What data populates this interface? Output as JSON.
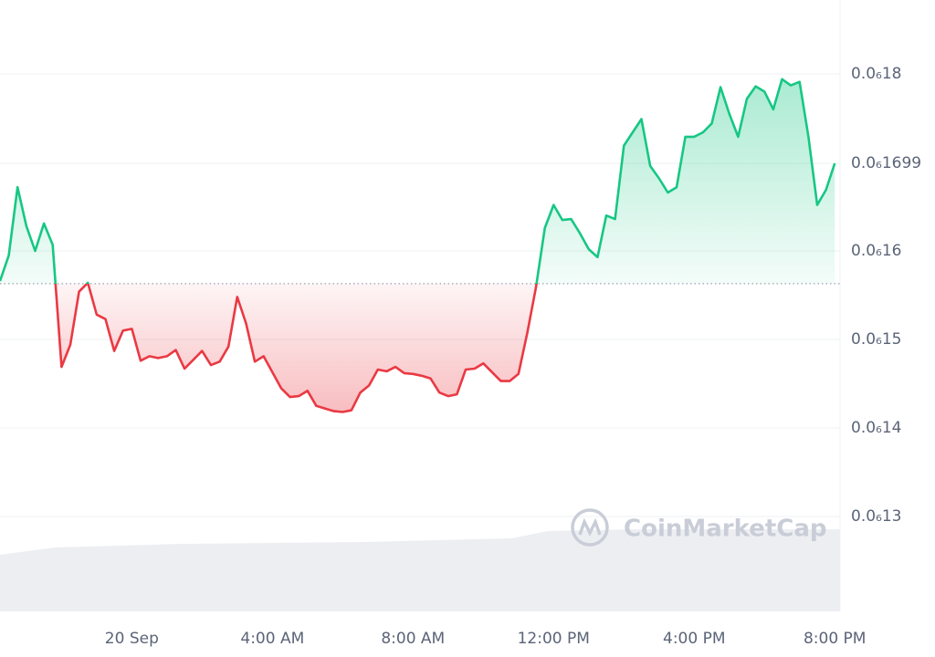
{
  "chart_data": {
    "type": "line",
    "watermark": "CoinMarketCap",
    "x": [
      -3.75,
      -3.5,
      -3.25,
      -3,
      -2.75,
      -2.5,
      -2.25,
      -2,
      -1.75,
      -1.5,
      -1.25,
      -1,
      -0.75,
      -0.5,
      -0.25,
      0,
      0.25,
      0.5,
      0.75,
      1,
      1.25,
      1.5,
      1.75,
      2,
      2.25,
      2.5,
      2.75,
      3,
      3.25,
      3.5,
      3.75,
      4,
      4.25,
      4.5,
      4.75,
      5,
      5.25,
      5.5,
      5.75,
      6,
      6.25,
      6.5,
      6.75,
      7,
      7.25,
      7.5,
      7.75,
      8,
      8.25,
      8.5,
      8.75,
      9,
      9.25,
      9.5,
      9.75,
      10,
      10.25,
      10.5,
      10.75,
      11,
      11.25,
      11.5,
      11.75,
      12,
      12.25,
      12.5,
      12.75,
      13,
      13.25,
      13.5,
      13.75,
      14,
      14.25,
      14.5,
      14.75,
      15,
      15.25,
      15.5,
      15.75,
      16,
      16.25,
      16.5,
      16.75,
      17,
      17.25,
      17.5,
      17.75,
      18,
      18.25,
      18.5,
      18.75,
      19,
      19.25,
      19.5,
      19.75,
      20
    ],
    "values": [
      1.566e-07,
      1.595e-07,
      1.672e-07,
      1.628e-07,
      1.6e-07,
      1.631e-07,
      1.607e-07,
      1.469e-07,
      1.494e-07,
      1.554e-07,
      1.564e-07,
      1.528e-07,
      1.523e-07,
      1.487e-07,
      1.51e-07,
      1.512e-07,
      1.476e-07,
      1.481e-07,
      1.479e-07,
      1.481e-07,
      1.488e-07,
      1.467e-07,
      1.477e-07,
      1.487e-07,
      1.471e-07,
      1.475e-07,
      1.492e-07,
      1.548e-07,
      1.518e-07,
      1.475e-07,
      1.481e-07,
      1.463e-07,
      1.445e-07,
      1.435e-07,
      1.436e-07,
      1.442e-07,
      1.425e-07,
      1.422e-07,
      1.419e-07,
      1.418e-07,
      1.42e-07,
      1.44e-07,
      1.448e-07,
      1.466e-07,
      1.464e-07,
      1.469e-07,
      1.462e-07,
      1.461e-07,
      1.459e-07,
      1.456e-07,
      1.44e-07,
      1.436e-07,
      1.438e-07,
      1.466e-07,
      1.467e-07,
      1.473e-07,
      1.463e-07,
      1.453e-07,
      1.453e-07,
      1.461e-07,
      1.507e-07,
      1.559e-07,
      1.626e-07,
      1.652e-07,
      1.635e-07,
      1.636e-07,
      1.62e-07,
      1.602e-07,
      1.593e-07,
      1.64e-07,
      1.636e-07,
      1.719e-07,
      1.734e-07,
      1.749e-07,
      1.696e-07,
      1.682e-07,
      1.666e-07,
      1.672e-07,
      1.729e-07,
      1.729e-07,
      1.734e-07,
      1.744e-07,
      1.785e-07,
      1.755e-07,
      1.729e-07,
      1.772e-07,
      1.786e-07,
      1.78e-07,
      1.76e-07,
      1.794e-07,
      1.787e-07,
      1.791e-07,
      1.729e-07,
      1.652e-07,
      1.669e-07,
      1.699e-07
    ],
    "baseline": 1.563e-07,
    "up_color": "#16c784",
    "down_color": "#ea3943",
    "xlim": [
      -3.75,
      20.15
    ],
    "xticks": [
      {
        "value": 0,
        "label": "20 Sep"
      },
      {
        "value": 4,
        "label": "4:00 AM"
      },
      {
        "value": 8,
        "label": "8:00 AM"
      },
      {
        "value": 12,
        "label": "12:00 PM"
      },
      {
        "value": 16,
        "label": "4:00 PM"
      },
      {
        "value": 20,
        "label": "8:00 PM"
      }
    ],
    "ylim": [
      1.1928e-07,
      1.8835e-07
    ],
    "yticks": [
      {
        "value": 1.3e-07,
        "label": "0.0₆13"
      },
      {
        "value": 1.4e-07,
        "label": "0.0₆14"
      },
      {
        "value": 1.5e-07,
        "label": "0.0₆15"
      },
      {
        "value": 1.6e-07,
        "label": "0.0₆16"
      },
      {
        "value": 1.699e-07,
        "label": "0.0₆1699"
      },
      {
        "value": 1.8e-07,
        "label": "0.0₆18"
      }
    ],
    "grid": true
  }
}
